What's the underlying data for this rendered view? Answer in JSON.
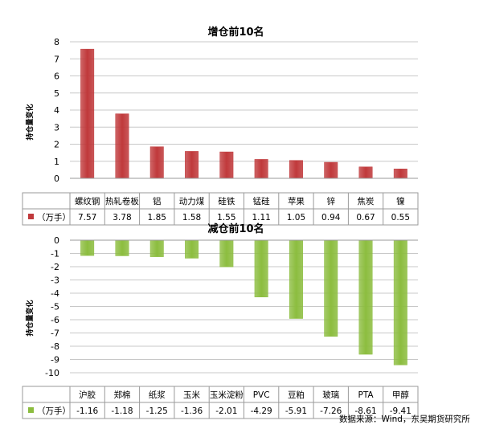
{
  "source": "数据来源：Wind，东吴期货研究所",
  "chart_data": [
    {
      "type": "bar",
      "title": "增仓前10名",
      "ylabel": "持仓量变化",
      "series": [
        {
          "name": "（万手）",
          "values": [
            7.57,
            3.78,
            1.85,
            1.58,
            1.55,
            1.11,
            1.05,
            0.94,
            0.67,
            0.55
          ]
        }
      ],
      "categories": [
        "螺纹钢",
        "热轧卷板",
        "铝",
        "动力煤",
        "硅铁",
        "锰硅",
        "苹果",
        "锌",
        "焦炭",
        "镍"
      ],
      "values": [
        7.57,
        3.78,
        1.85,
        1.58,
        1.55,
        1.11,
        1.05,
        0.94,
        0.67,
        0.55
      ],
      "value_labels": [
        "7.57",
        "3.78",
        "1.85",
        "1.58",
        "1.55",
        "1.11",
        "1.05",
        "0.94",
        "0.67",
        "0.55"
      ],
      "ylim": [
        0,
        8
      ],
      "yticks": [
        0,
        1,
        2,
        3,
        4,
        5,
        6,
        7,
        8
      ],
      "grid": true,
      "color": "#c0393b",
      "legend": "data-table"
    },
    {
      "type": "bar",
      "title": "减仓前10名",
      "ylabel": "持仓量变化",
      "series": [
        {
          "name": "（万手）",
          "values": [
            -1.16,
            -1.18,
            -1.25,
            -1.36,
            -2.01,
            -4.29,
            -5.91,
            -7.26,
            -8.61,
            -9.41
          ]
        }
      ],
      "categories": [
        "沪胶",
        "郑棉",
        "纸浆",
        "玉米",
        "玉米淀粉",
        "PVC",
        "豆粕",
        "玻璃",
        "PTA",
        "甲醇"
      ],
      "values": [
        -1.16,
        -1.18,
        -1.25,
        -1.36,
        -2.01,
        -4.29,
        -5.91,
        -7.26,
        -8.61,
        -9.41
      ],
      "value_labels": [
        "-1.16",
        "-1.18",
        "-1.25",
        "-1.36",
        "-2.01",
        "-4.29",
        "-5.91",
        "-7.26",
        "-8.61",
        "-9.41"
      ],
      "ylim": [
        -10,
        0
      ],
      "yticks": [
        0,
        -1,
        -2,
        -3,
        -4,
        -5,
        -6,
        -7,
        -8,
        -9,
        -10
      ],
      "grid": true,
      "color": "#8cbd3f",
      "legend": "data-table"
    }
  ]
}
